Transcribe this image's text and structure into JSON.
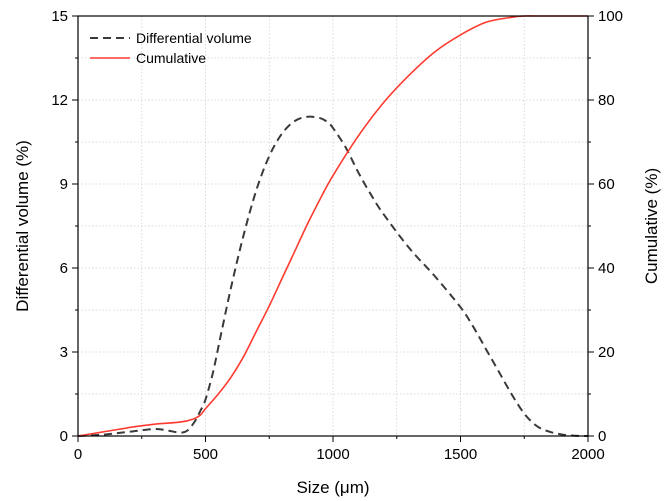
{
  "chart_data": {
    "type": "line",
    "title": "",
    "xlabel": "Size (μm)",
    "ylabel_left": "Differential volume (%)",
    "ylabel_right": "Cumulative (%)",
    "xlim": [
      0,
      2000
    ],
    "ylim_left": [
      0,
      15
    ],
    "ylim_right": [
      0,
      100
    ],
    "x_ticks": [
      "0",
      "500",
      "1000",
      "1500",
      "2000"
    ],
    "y_left_ticks": [
      "0",
      "3",
      "6",
      "9",
      "12",
      "15"
    ],
    "y_right_ticks": [
      "0",
      "20",
      "40",
      "60",
      "80",
      "100"
    ],
    "grid": true,
    "legend_position": "top-left",
    "series": [
      {
        "name": "Differential volume",
        "axis": "left",
        "style": "dashed",
        "color": "#3a3a3a",
        "x": [
          0,
          100,
          200,
          300,
          350,
          400,
          430,
          460,
          480,
          500,
          530,
          560,
          600,
          650,
          700,
          750,
          800,
          850,
          900,
          950,
          980,
          1000,
          1050,
          1100,
          1150,
          1200,
          1300,
          1400,
          1500,
          1550,
          1600,
          1650,
          1700,
          1750,
          1800,
          1850,
          1900,
          1950,
          2000
        ],
        "y": [
          0,
          0.05,
          0.15,
          0.25,
          0.2,
          0.12,
          0.2,
          0.55,
          0.9,
          1.3,
          2.3,
          3.6,
          5.3,
          7.2,
          8.8,
          10.0,
          10.8,
          11.25,
          11.4,
          11.35,
          11.2,
          11.0,
          10.3,
          9.4,
          8.6,
          7.9,
          6.7,
          5.7,
          4.6,
          3.9,
          3.1,
          2.3,
          1.5,
          0.8,
          0.35,
          0.15,
          0.05,
          0.01,
          0
        ]
      },
      {
        "name": "Cumulative",
        "axis": "right",
        "style": "solid",
        "color": "#ff3b30",
        "x": [
          0,
          100,
          200,
          300,
          400,
          450,
          480,
          500,
          550,
          600,
          650,
          700,
          750,
          800,
          850,
          900,
          950,
          1000,
          1100,
          1200,
          1300,
          1400,
          1500,
          1600,
          1700,
          1750,
          1800,
          1900,
          2000
        ],
        "y": [
          0,
          1.0,
          2.0,
          2.8,
          3.3,
          4.0,
          5.0,
          6.5,
          10.0,
          14.0,
          19.0,
          25.0,
          31.0,
          37.5,
          44.0,
          50.5,
          56.5,
          62.0,
          71.5,
          79.5,
          86.0,
          91.5,
          95.5,
          98.5,
          99.7,
          100,
          100,
          100,
          100
        ]
      }
    ]
  }
}
